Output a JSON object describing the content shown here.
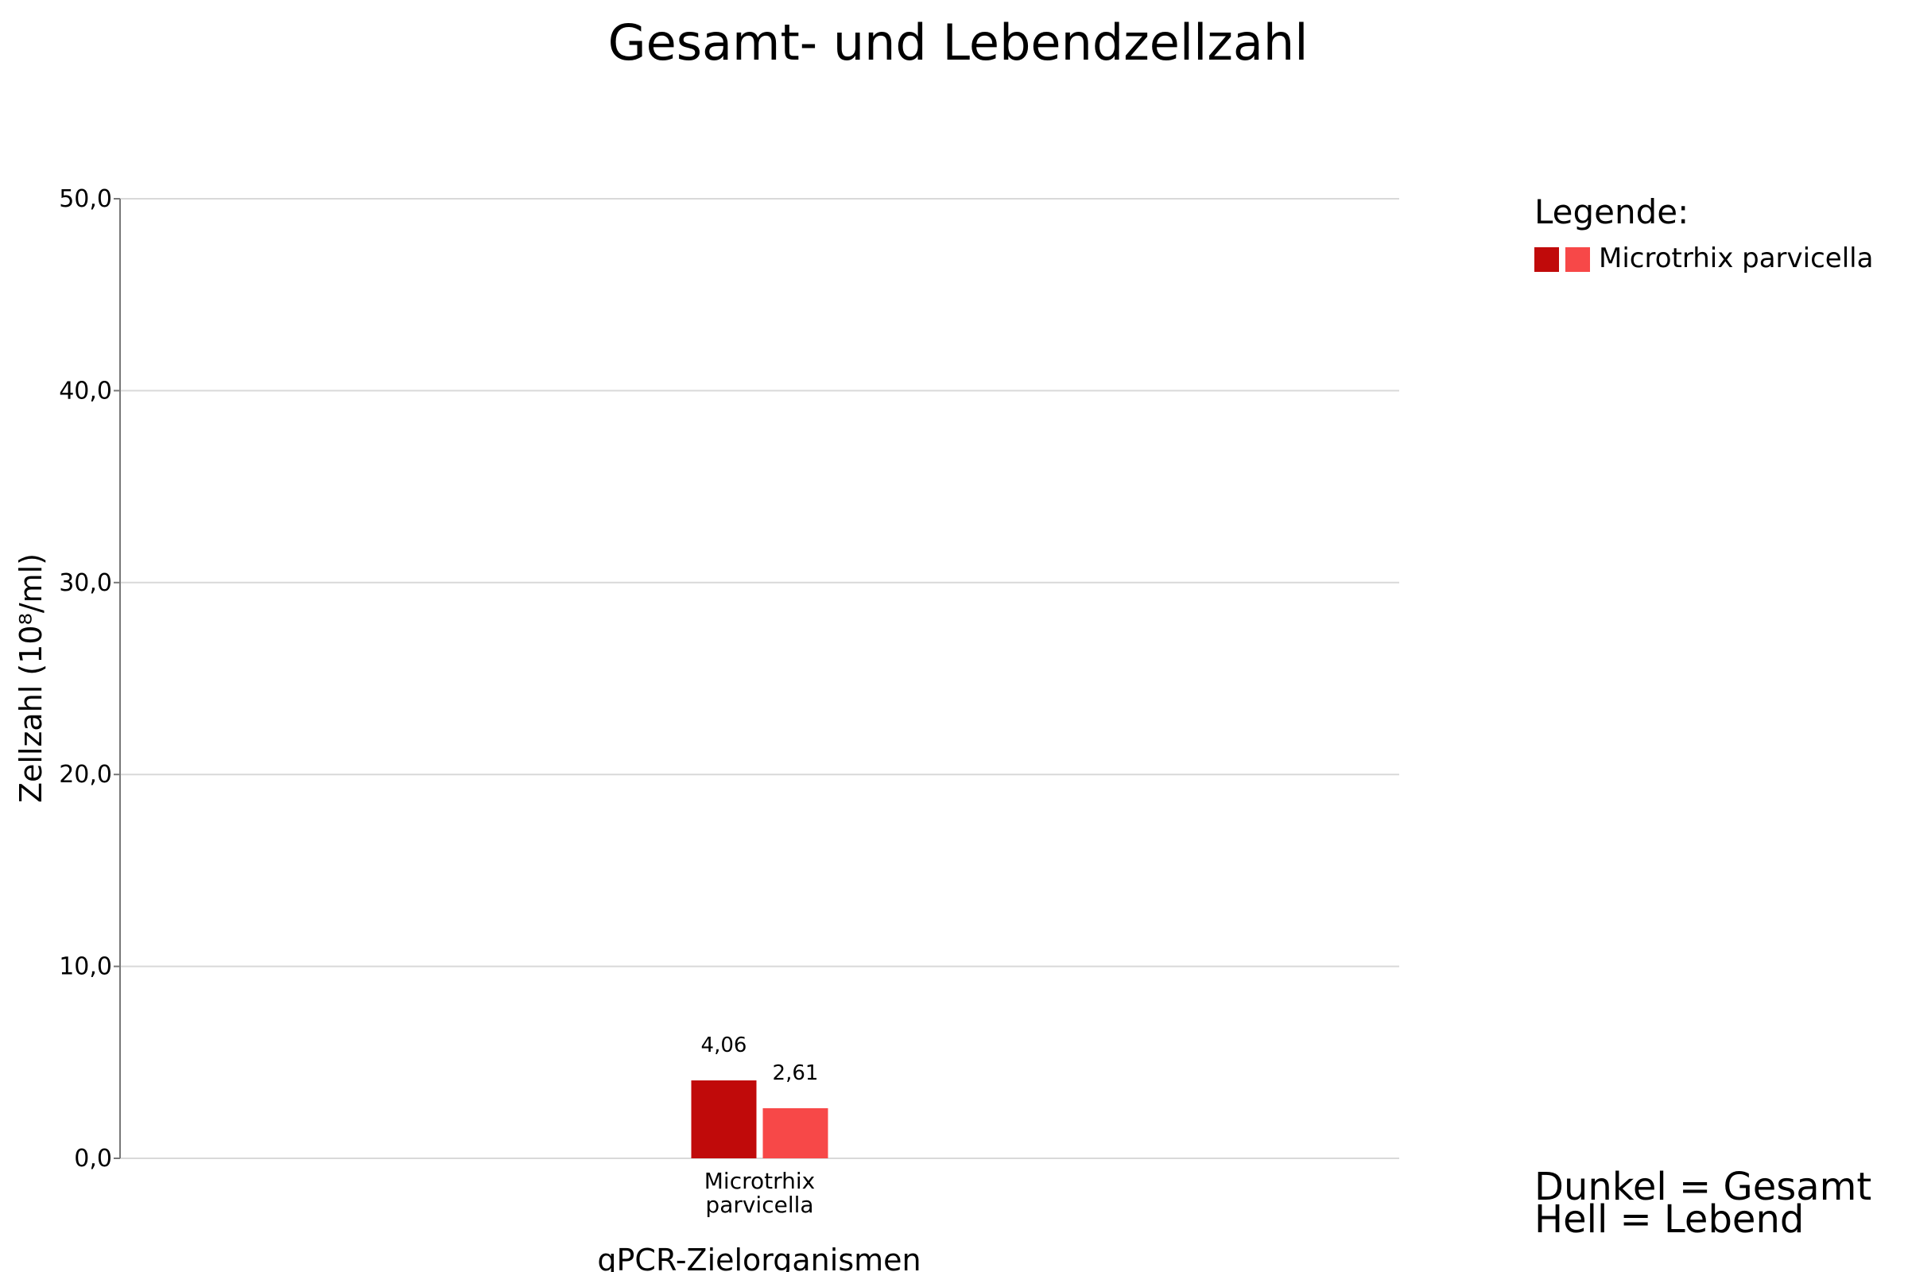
{
  "chart_data": {
    "type": "bar",
    "title": "Gesamt- und Lebendzellzahl",
    "xlabel": "qPCR-Zielorganismen",
    "ylabel": "Zellzahl (10⁸/ml)",
    "ylim": [
      0,
      50
    ],
    "yticks": [
      "0,0",
      "10,0",
      "20,0",
      "30,0",
      "40,0",
      "50,0"
    ],
    "ytick_values": [
      0,
      10,
      20,
      30,
      40,
      50
    ],
    "grid": true,
    "categories": [
      [
        "Microtrhix",
        "parvicella"
      ]
    ],
    "series": [
      {
        "values": [
          4.06
        ],
        "labels": [
          "4,06"
        ],
        "color": "#c00a0a"
      },
      {
        "values": [
          2.61
        ],
        "labels": [
          "2,61"
        ],
        "color": "#f74848"
      }
    ],
    "legend": {
      "title": "Legende:",
      "placement": "top-right",
      "items": [
        {
          "label": "Microtrhix parvicella",
          "colors": [
            "#c00a0a",
            "#f74848"
          ]
        }
      ]
    },
    "notes": [
      "Dunkel = Gesamt",
      "Hell = Lebend"
    ]
  }
}
